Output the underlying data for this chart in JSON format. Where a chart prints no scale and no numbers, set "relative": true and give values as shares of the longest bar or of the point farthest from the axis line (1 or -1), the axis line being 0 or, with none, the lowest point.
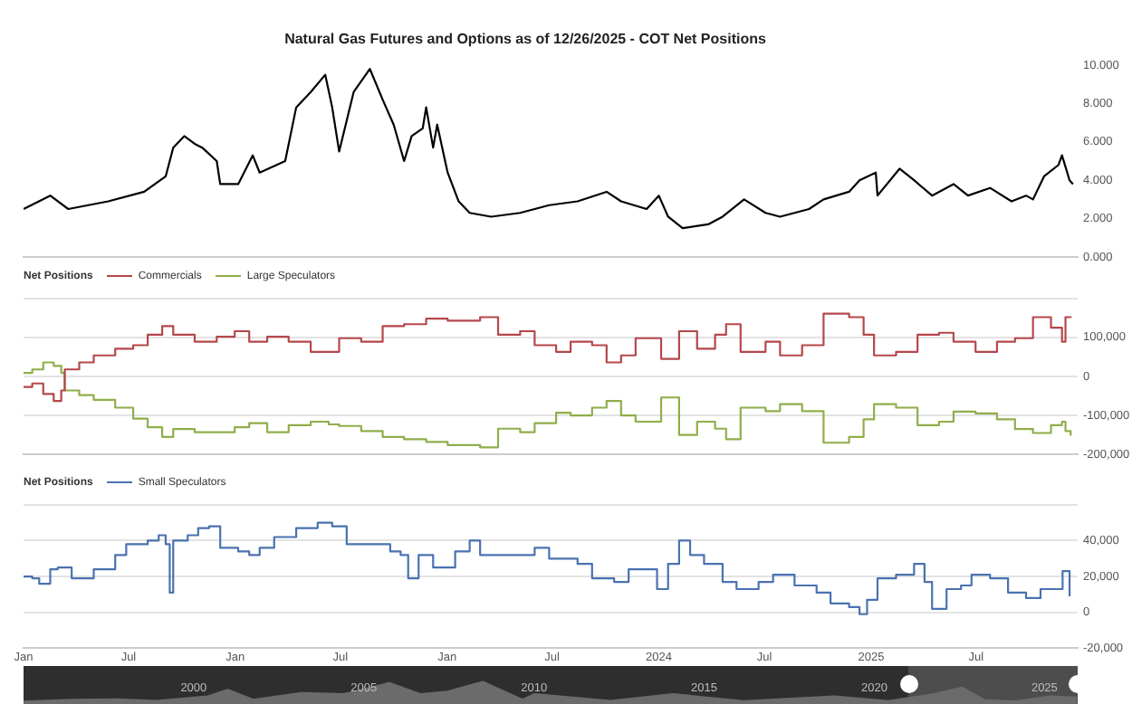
{
  "chart_data": [
    {
      "type": "line",
      "title": "Natural Gas Futures and Options as of 12/26/2025 - COT Net Positions",
      "tick_labels": "y",
      "grid": false,
      "legend": false,
      "xlim": [
        "2021-01-01",
        "2025-12-23"
      ],
      "ylim": [
        0,
        10
      ],
      "yticks": [
        {
          "value": 0,
          "label": "0.000"
        },
        {
          "value": 2,
          "label": "2.000"
        },
        {
          "value": 4,
          "label": "4.000"
        },
        {
          "value": 6,
          "label": "6.000"
        },
        {
          "value": 8,
          "label": "8.000"
        },
        {
          "value": 10,
          "label": "10.000"
        }
      ],
      "series": [
        {
          "color": "#000000",
          "x": [
            "2021-01-01",
            "2021-02-16",
            "2021-03-19",
            "2021-05-27",
            "2021-07-28",
            "2021-09-03",
            "2021-09-16",
            "2021-10-05",
            "2021-10-23",
            "2021-11-05",
            "2021-11-30",
            "2021-12-06",
            "2022-01-06",
            "2022-01-31",
            "2022-02-12",
            "2022-03-28",
            "2022-04-16",
            "2022-05-11",
            "2022-06-05",
            "2022-06-17",
            "2022-06-29",
            "2022-07-24",
            "2022-08-21",
            "2022-09-12",
            "2022-10-01",
            "2022-10-19",
            "2022-11-01",
            "2022-11-20",
            "2022-11-26",
            "2022-12-08",
            "2022-12-15",
            "2023-01-02",
            "2023-01-21",
            "2023-02-09",
            "2023-03-18",
            "2023-05-07",
            "2023-06-26",
            "2023-08-14",
            "2023-10-03",
            "2023-10-28",
            "2023-12-11",
            "2024-01-01",
            "2024-01-17",
            "2024-02-11",
            "2024-03-26",
            "2024-04-20",
            "2024-05-27",
            "2024-07-03",
            "2024-07-28",
            "2024-09-16",
            "2024-10-11",
            "2024-11-24",
            "2024-12-12",
            "2025-01-09",
            "2025-01-12",
            "2025-02-19",
            "2025-03-16",
            "2025-04-16",
            "2025-05-23",
            "2025-06-17",
            "2025-07-25",
            "2025-08-31",
            "2025-09-25",
            "2025-10-07",
            "2025-10-26",
            "2025-11-20",
            "2025-11-26",
            "2025-12-09",
            "2025-12-15"
          ],
          "values": [
            2.5,
            3.2,
            2.5,
            2.9,
            3.4,
            4.2,
            5.7,
            6.3,
            5.9,
            5.7,
            5.0,
            3.8,
            3.8,
            5.3,
            4.4,
            5.0,
            7.8,
            8.6,
            9.5,
            7.8,
            5.5,
            8.6,
            9.8,
            8.2,
            6.9,
            5.0,
            6.3,
            6.7,
            7.8,
            5.7,
            6.9,
            4.4,
            2.9,
            2.3,
            2.1,
            2.3,
            2.7,
            2.9,
            3.4,
            2.9,
            2.5,
            3.2,
            2.1,
            1.5,
            1.7,
            2.1,
            3.0,
            2.3,
            2.1,
            2.5,
            3.0,
            3.4,
            4.0,
            4.4,
            3.2,
            4.6,
            4.0,
            3.2,
            3.8,
            3.2,
            3.6,
            2.9,
            3.2,
            3.0,
            4.2,
            4.8,
            5.3,
            4.0,
            3.8
          ]
        }
      ]
    },
    {
      "type": "step",
      "legend_title": "Net Positions",
      "legend": "top left",
      "tick_labels": "y",
      "grid": "y",
      "xlim": [
        "2021-01-01",
        "2025-12-23"
      ],
      "ylim": [
        -200000,
        200000
      ],
      "yticks": [
        {
          "value": -200000,
          "label": "-200,000"
        },
        {
          "value": -100000,
          "label": "-100,000"
        },
        {
          "value": 0,
          "label": "0"
        },
        {
          "value": 100000,
          "label": "100,000"
        },
        {
          "value": 200000,
          "label": null
        }
      ],
      "x": [
        "2021-01-01",
        "2021-01-16",
        "2021-02-04",
        "2021-02-22",
        "2021-03-07",
        "2021-03-13",
        "2021-04-07",
        "2021-05-02",
        "2021-06-08",
        "2021-07-09",
        "2021-08-03",
        "2021-08-28",
        "2021-09-16",
        "2021-10-23",
        "2021-11-30",
        "2021-12-31",
        "2022-01-25",
        "2022-02-25",
        "2022-04-03",
        "2022-05-11",
        "2022-06-11",
        "2022-06-29",
        "2022-08-06",
        "2022-09-12",
        "2022-10-19",
        "2022-11-26",
        "2023-01-02",
        "2023-02-27",
        "2023-03-30",
        "2023-05-07",
        "2023-06-01",
        "2023-07-08",
        "2023-08-02",
        "2023-09-08",
        "2023-10-03",
        "2023-10-28",
        "2023-11-22",
        "2024-01-05",
        "2024-02-05",
        "2024-03-07",
        "2024-04-07",
        "2024-04-26",
        "2024-05-21",
        "2024-07-03",
        "2024-07-28",
        "2024-09-04",
        "2024-10-11",
        "2024-11-24",
        "2024-12-19",
        "2025-01-06",
        "2025-02-13",
        "2025-03-22",
        "2025-04-28",
        "2025-05-23",
        "2025-06-30",
        "2025-08-06",
        "2025-09-06",
        "2025-10-07",
        "2025-11-07",
        "2025-11-26",
        "2025-12-02",
        "2025-12-11"
      ],
      "series": [
        {
          "name": "Commercials",
          "color": "#b5474b",
          "values": [
            -27000,
            -18000,
            -45000,
            -63000,
            -36000,
            18000,
            36000,
            54000,
            71000,
            80000,
            107000,
            129000,
            107000,
            89000,
            102000,
            116000,
            89000,
            102000,
            89000,
            63000,
            63000,
            98000,
            89000,
            129000,
            134000,
            148000,
            143000,
            152000,
            107000,
            116000,
            80000,
            63000,
            89000,
            80000,
            36000,
            54000,
            98000,
            45000,
            116000,
            71000,
            107000,
            134000,
            63000,
            89000,
            54000,
            80000,
            161000,
            152000,
            107000,
            54000,
            63000,
            107000,
            112000,
            89000,
            63000,
            89000,
            98000,
            152000,
            125000,
            89000,
            152000,
            150000
          ]
        },
        {
          "name": "Large Speculators",
          "color": "#8fae4a",
          "values": [
            9000,
            18000,
            36000,
            27000,
            9000,
            -36000,
            -48000,
            -60000,
            -80000,
            -108000,
            -130000,
            -155000,
            -135000,
            -143000,
            -143000,
            -130000,
            -120000,
            -143000,
            -125000,
            -116000,
            -123000,
            -127000,
            -140000,
            -155000,
            -161000,
            -168000,
            -176000,
            -182000,
            -134000,
            -143000,
            -120000,
            -93000,
            -100000,
            -80000,
            -63000,
            -100000,
            -116000,
            -54000,
            -150000,
            -116000,
            -134000,
            -161000,
            -80000,
            -89000,
            -71000,
            -89000,
            -170000,
            -155000,
            -110000,
            -71000,
            -80000,
            -125000,
            -116000,
            -90000,
            -95000,
            -110000,
            -135000,
            -145000,
            -125000,
            -116000,
            -140000,
            -152000
          ]
        }
      ]
    },
    {
      "type": "step",
      "legend_title": "Net Positions",
      "legend": "top left",
      "grid": "y",
      "xlim": [
        "2021-01-01",
        "2025-12-23"
      ],
      "ylim": [
        -20000,
        60000
      ],
      "xticks": [
        {
          "value": "2021-01-01",
          "label": "Jan"
        },
        {
          "value": "2021-07-01",
          "label": "Jul"
        },
        {
          "value": "2022-01-01",
          "label": "Jan"
        },
        {
          "value": "2022-07-01",
          "label": "Jul"
        },
        {
          "value": "2023-01-01",
          "label": "Jan"
        },
        {
          "value": "2023-07-01",
          "label": "Jul"
        },
        {
          "value": "2024-01-01",
          "label": "2024"
        },
        {
          "value": "2024-07-01",
          "label": "Jul"
        },
        {
          "value": "2025-01-01",
          "label": "2025"
        },
        {
          "value": "2025-07-01",
          "label": "Jul"
        }
      ],
      "yticks": [
        {
          "value": -20000,
          "label": "-20,000"
        },
        {
          "value": 0,
          "label": "0"
        },
        {
          "value": 20000,
          "label": "20,000"
        },
        {
          "value": 40000,
          "label": "40,000"
        },
        {
          "value": 60000,
          "label": null
        }
      ],
      "x": [
        "2021-01-01",
        "2021-01-16",
        "2021-01-28",
        "2021-02-16",
        "2021-03-01",
        "2021-03-25",
        "2021-05-02",
        "2021-06-08",
        "2021-06-27",
        "2021-08-03",
        "2021-08-22",
        "2021-09-03",
        "2021-09-10",
        "2021-09-16",
        "2021-10-11",
        "2021-10-29",
        "2021-11-17",
        "2021-12-06",
        "2022-01-06",
        "2022-01-25",
        "2022-02-12",
        "2022-03-09",
        "2022-04-16",
        "2022-05-23",
        "2022-06-17",
        "2022-07-12",
        "2022-08-18",
        "2022-09-25",
        "2022-10-13",
        "2022-10-26",
        "2022-11-13",
        "2022-12-08",
        "2023-01-15",
        "2023-02-09",
        "2023-02-27",
        "2023-04-12",
        "2023-06-01",
        "2023-06-26",
        "2023-08-14",
        "2023-09-08",
        "2023-10-16",
        "2023-11-10",
        "2023-12-11",
        "2023-12-29",
        "2024-01-17",
        "2024-02-05",
        "2024-02-24",
        "2024-03-19",
        "2024-04-20",
        "2024-05-14",
        "2024-06-21",
        "2024-07-16",
        "2024-08-22",
        "2024-09-29",
        "2024-10-23",
        "2024-11-24",
        "2024-12-12",
        "2024-12-25",
        "2025-01-12",
        "2025-02-13",
        "2025-03-16",
        "2025-04-03",
        "2025-04-16",
        "2025-05-11",
        "2025-06-05",
        "2025-06-23",
        "2025-07-25",
        "2025-08-25",
        "2025-09-25",
        "2025-10-20",
        "2025-11-20",
        "2025-11-27",
        "2025-12-09"
      ],
      "series": [
        {
          "name": "Small Speculators",
          "color": "#4a72b0",
          "values": [
            20000,
            19000,
            16000,
            24000,
            25000,
            19000,
            24000,
            32000,
            38000,
            40000,
            43000,
            38000,
            11000,
            40000,
            43000,
            47000,
            48000,
            36000,
            34000,
            32000,
            36000,
            42000,
            47000,
            50000,
            48000,
            38000,
            38000,
            34000,
            32000,
            19000,
            32000,
            25000,
            34000,
            40000,
            32000,
            32000,
            36000,
            30000,
            27000,
            19000,
            17000,
            24000,
            24000,
            13000,
            27000,
            40000,
            32000,
            27000,
            17000,
            13000,
            17000,
            21000,
            15000,
            11000,
            5000,
            3000,
            -1000,
            7000,
            19000,
            21000,
            27000,
            17000,
            2000,
            13000,
            15000,
            21000,
            19000,
            11000,
            8000,
            13000,
            13000,
            23000,
            9000
          ]
        }
      ]
    },
    {
      "type": "area",
      "relative": true,
      "tick_labels": "x",
      "grid": false,
      "xlim": [
        "1995-01-01",
        "2025-12-23"
      ],
      "xticks": [
        "2000",
        "2005",
        "2010",
        "2015",
        "2020",
        "2025"
      ],
      "bands": [
        {
          "axis": "x",
          "from": "2021-01-01",
          "to": "2025-12-23",
          "color": "#4d4d4d"
        }
      ],
      "x": [
        "1995-01-01",
        "1996-06-01",
        "1997-10-01",
        "1998-12-01",
        "2000-06-01",
        "2001-01-01",
        "2001-10-01",
        "2003-03-01",
        "2004-06-01",
        "2005-10-01",
        "2006-09-01",
        "2007-06-01",
        "2008-07-01",
        "2009-09-01",
        "2010-01-01",
        "2012-04-01",
        "2014-02-01",
        "2016-03-01",
        "2018-11-01",
        "2020-06-01",
        "2021-10-01",
        "2022-08-01",
        "2023-04-01",
        "2024-03-01",
        "2025-03-01",
        "2025-12-15"
      ],
      "series": [
        {
          "color": "#6b6b6b",
          "values": [
            0.12,
            0.2,
            0.22,
            0.15,
            0.35,
            0.65,
            0.2,
            0.5,
            0.45,
            0.95,
            0.45,
            0.55,
            1,
            0.2,
            0.45,
            0.15,
            0.45,
            0.14,
            0.35,
            0.14,
            0.45,
            0.75,
            0.18,
            0.13,
            0.35,
            0.3
          ]
        }
      ]
    }
  ]
}
